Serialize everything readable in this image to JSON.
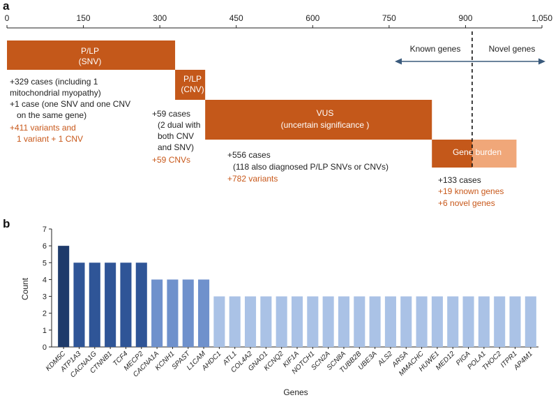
{
  "panel_a": {
    "letter": "a",
    "axis_ticks": [
      "0",
      "150",
      "300",
      "450",
      "600",
      "750",
      "900",
      "1,050"
    ],
    "box_pl_snv": {
      "line1": "P/LP",
      "line2": "(SNV)"
    },
    "box_pl_cnv": {
      "line1": "P/LP",
      "line2": "(CNV)"
    },
    "box_vus": {
      "line1": "VUS",
      "line2": "(uncertain significance )"
    },
    "box_gene_burden": "Gene burden",
    "known_genes": "Known genes",
    "novel_genes": "Novel genes",
    "note_snv": {
      "l1": "+329 cases (including 1",
      "l2": "mitochondrial myopathy)",
      "l3": "+1 case (one SNV and one CNV",
      "l4": "on the same gene)",
      "l5": "+411 variants and",
      "l6": "1 variant + 1 CNV"
    },
    "note_cnv": {
      "l1": "+59 cases",
      "l2": "(2 dual with",
      "l3": "both CNV",
      "l4": "and SNV)",
      "l5": "+59 CNVs"
    },
    "note_vus": {
      "l1": "+556 cases",
      "l2": "(118 also diagnosed P/LP SNVs or CNVs)",
      "l3": "+782 variants"
    },
    "note_burden": {
      "l1": "+133 cases",
      "l2": "+19 known genes",
      "l3": "+6   novel genes"
    }
  },
  "panel_b": {
    "letter": "b"
  },
  "colors": {
    "orange": "#c4581a",
    "orange_light": "#f0a779",
    "orange_text": "#c8581a",
    "arrow": "#3a5a7c",
    "bar_6": "#1f3b6b",
    "bar_5": "#2f5597",
    "bar_4": "#6f91cc",
    "bar_3": "#aac2e6"
  },
  "chart_data": [
    {
      "type": "bar",
      "subtype": "stacked-range",
      "xlim": [
        0,
        1050
      ],
      "xticks": [
        0,
        150,
        300,
        450,
        600,
        750,
        900,
        1050
      ],
      "segments": [
        {
          "name": "P/LP (SNV)",
          "start": 0,
          "end": 330
        },
        {
          "name": "P/LP (CNV)",
          "start": 330,
          "end": 389
        },
        {
          "name": "VUS",
          "start": 389,
          "end": 834
        },
        {
          "name": "Gene burden (known genes)",
          "start": 834,
          "end": 913
        },
        {
          "name": "Gene burden (novel genes)",
          "start": 913,
          "end": 1000
        }
      ],
      "divider_x": 913
    },
    {
      "type": "bar",
      "xlabel": "Genes",
      "ylabel": "Count",
      "ylim": [
        0,
        7
      ],
      "yticks": [
        0,
        1,
        2,
        3,
        4,
        5,
        6,
        7
      ],
      "categories": [
        "KDM5C",
        "ATP1A3",
        "CACNA1G",
        "CTNNB1",
        "TCF4",
        "MECP2",
        "CACNA1A",
        "KCNH1",
        "SPAST",
        "L1CAM",
        "AHDC1",
        "ATL1",
        "COL4A2",
        "GNAO1",
        "KCNQ2",
        "KIF1A",
        "NOTCH1",
        "SCN2A",
        "SCN8A",
        "TUBB2B",
        "UBE3A",
        "ALS2",
        "ARSA",
        "MMACHC",
        "HUWE1",
        "MED12",
        "PIGA",
        "POLA1",
        "THOC2",
        "ITPR1",
        "AP4M1"
      ],
      "values": [
        6,
        5,
        5,
        5,
        5,
        5,
        4,
        4,
        4,
        4,
        3,
        3,
        3,
        3,
        3,
        3,
        3,
        3,
        3,
        3,
        3,
        3,
        3,
        3,
        3,
        3,
        3,
        3,
        3,
        3,
        3
      ]
    }
  ]
}
